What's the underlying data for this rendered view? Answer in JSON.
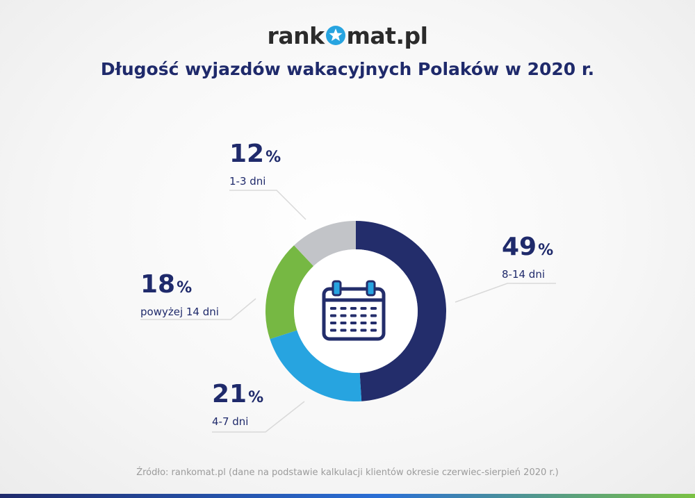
{
  "header": {
    "logo_prefix": "rank",
    "logo_suffix": "mat.pl",
    "title": "Długość wyjazdów wakacyjnych Polaków w 2020 r."
  },
  "labels": {
    "l0": {
      "value": "49",
      "unit": "%",
      "category": "8-14 dni"
    },
    "l1": {
      "value": "21",
      "unit": "%",
      "category": "4-7 dni"
    },
    "l2": {
      "value": "18",
      "unit": "%",
      "category": "powyżej 14 dni"
    },
    "l3": {
      "value": "12",
      "unit": "%",
      "category": "1-3 dni"
    }
  },
  "chart_data": {
    "type": "pie",
    "title": "Długość wyjazdów wakacyjnych Polaków w 2020 r.",
    "categories": [
      "8-14 dni",
      "4-7 dni",
      "powyżej 14 dni",
      "1-3 dni"
    ],
    "values": [
      49,
      21,
      18,
      12
    ],
    "unit": "%",
    "colors": [
      "#232d6b",
      "#27a4e0",
      "#76b843",
      "#c2c4c8"
    ],
    "center_icon": "calendar-icon"
  },
  "colors": {
    "title": "#1f2a6b",
    "logo_star": "#27a4e0"
  },
  "footer": {
    "source": "Źródło: rankomat.pl (dane na podstawie kalkulacji klientów okresie czerwiec-sierpień 2020 r.)"
  }
}
